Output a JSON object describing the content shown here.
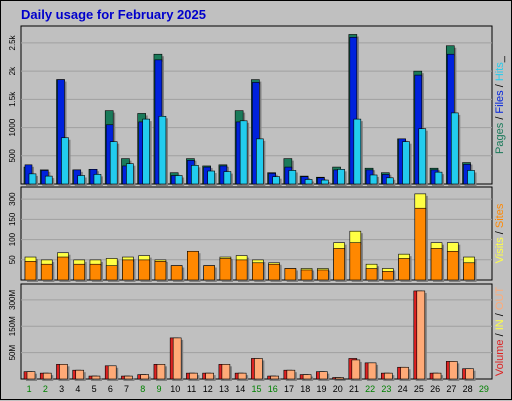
{
  "title": "Daily usage for February 2025",
  "colors": {
    "background": "#c0c0c0",
    "title": "#0000cc",
    "pages": "#1a7a5a",
    "files": "#0022dd",
    "hits": "#22ccee",
    "visits": "#ffff44",
    "sites": "#ff8800",
    "volume": "#dd2222",
    "volume_out": "#ffaa77",
    "weekday_label": "#000000",
    "weekend_label": "#008000"
  },
  "chart_data": [
    {
      "type": "bar",
      "panel": "hits",
      "categories": [
        "1",
        "2",
        "3",
        "4",
        "5",
        "6",
        "7",
        "8",
        "9",
        "10",
        "11",
        "12",
        "13",
        "14",
        "15",
        "16",
        "17",
        "18",
        "19",
        "20",
        "21",
        "22",
        "23",
        "24",
        "25",
        "26",
        "27",
        "28",
        "29"
      ],
      "weekend_days": [
        "1",
        "2",
        "8",
        "9",
        "15",
        "16",
        "22",
        "23",
        "29"
      ],
      "yticks": [
        "500",
        "1000",
        "1.5k",
        "2k",
        "2.5k"
      ],
      "ylim": [
        0,
        2800
      ],
      "legend_parts": [
        {
          "text": "Pages",
          "color": "#1a7a5a"
        },
        {
          "text": " / ",
          "color": "#000000"
        },
        {
          "text": "Files",
          "color": "#0022dd"
        },
        {
          "text": " / ",
          "color": "#000000"
        },
        {
          "text": "Hits",
          "color": "#22ccee"
        },
        {
          "text": "_",
          "color": "#000000"
        }
      ],
      "series": [
        {
          "name": "Pages",
          "values": [
            300,
            250,
            1850,
            250,
            260,
            1300,
            450,
            1250,
            2300,
            200,
            450,
            320,
            340,
            1300,
            1850,
            200,
            450,
            140,
            120,
            300,
            2650,
            280,
            200,
            800,
            2000,
            280,
            2450,
            380,
            0
          ]
        },
        {
          "name": "Files",
          "values": [
            340,
            240,
            1850,
            250,
            260,
            1050,
            320,
            1100,
            2200,
            150,
            420,
            300,
            320,
            1100,
            1800,
            190,
            300,
            130,
            110,
            250,
            2600,
            250,
            170,
            800,
            1930,
            250,
            2300,
            350,
            0
          ]
        },
        {
          "name": "Hits",
          "values": [
            180,
            140,
            820,
            150,
            170,
            750,
            360,
            1150,
            1200,
            150,
            330,
            230,
            220,
            1120,
            800,
            130,
            240,
            80,
            70,
            260,
            1150,
            160,
            110,
            750,
            980,
            210,
            1260,
            240,
            0
          ]
        }
      ]
    },
    {
      "type": "bar",
      "panel": "visits",
      "categories": [
        "1",
        "2",
        "3",
        "4",
        "5",
        "6",
        "7",
        "8",
        "9",
        "10",
        "11",
        "12",
        "13",
        "14",
        "15",
        "16",
        "17",
        "18",
        "19",
        "20",
        "21",
        "22",
        "23",
        "24",
        "25",
        "26",
        "27",
        "28",
        "29"
      ],
      "yticks": [
        "50",
        "100",
        "150",
        "300"
      ],
      "ylim": [
        0,
        310
      ],
      "legend_parts": [
        {
          "text": "Visits",
          "color": "#ffff44"
        },
        {
          "text": " / ",
          "color": "#000000"
        },
        {
          "text": "Sites",
          "color": "#ff8800"
        }
      ],
      "series": [
        {
          "name": "Visits",
          "values": [
            80,
            70,
            95,
            70,
            70,
            75,
            80,
            85,
            70,
            50,
            100,
            50,
            80,
            85,
            70,
            60,
            40,
            40,
            40,
            130,
            170,
            55,
            40,
            90,
            300,
            130,
            130,
            80,
            0
          ]
        },
        {
          "name": "Sites",
          "values": [
            65,
            55,
            80,
            55,
            55,
            50,
            70,
            70,
            65,
            50,
            100,
            50,
            75,
            70,
            60,
            55,
            40,
            35,
            35,
            110,
            130,
            40,
            30,
            75,
            250,
            110,
            100,
            60,
            0
          ]
        }
      ]
    },
    {
      "type": "bar",
      "panel": "volume",
      "categories": [
        "1",
        "2",
        "3",
        "4",
        "5",
        "6",
        "7",
        "8",
        "9",
        "10",
        "11",
        "12",
        "13",
        "14",
        "15",
        "16",
        "17",
        "18",
        "19",
        "20",
        "21",
        "22",
        "23",
        "24",
        "25",
        "26",
        "27",
        "28",
        "29"
      ],
      "yticks": [
        "50M",
        "150M",
        "300M"
      ],
      "ylim": [
        0,
        310
      ],
      "legend_parts": [
        {
          "text": "Volume",
          "color": "#dd2222"
        },
        {
          "text": " / ",
          "color": "#000000"
        },
        {
          "text": "IN",
          "color": "#ffff44"
        },
        {
          "text": " / ",
          "color": "#000000"
        },
        {
          "text": "OUT",
          "color": "#ffaa77"
        }
      ],
      "series": [
        {
          "name": "Volume",
          "values": [
            25,
            20,
            50,
            30,
            10,
            45,
            10,
            15,
            50,
            140,
            20,
            20,
            50,
            20,
            70,
            10,
            30,
            15,
            25,
            5,
            70,
            55,
            20,
            40,
            300,
            20,
            60,
            35,
            0
          ]
        },
        {
          "name": "OUT",
          "values": [
            25,
            20,
            50,
            30,
            10,
            45,
            10,
            15,
            50,
            140,
            20,
            20,
            50,
            20,
            70,
            10,
            30,
            15,
            25,
            5,
            65,
            55,
            20,
            40,
            300,
            20,
            60,
            35,
            0
          ]
        }
      ]
    }
  ]
}
